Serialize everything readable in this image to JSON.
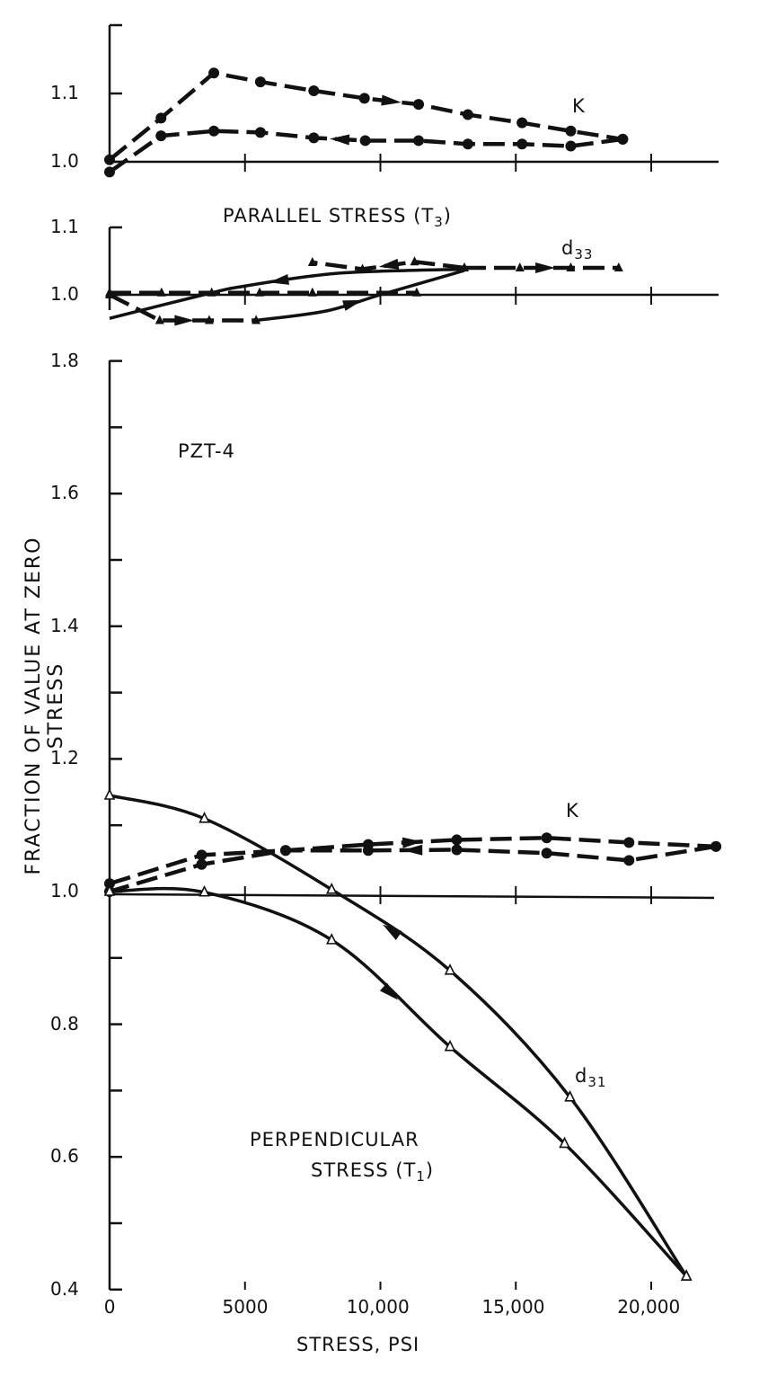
{
  "ylabel": "FRACTION OF VALUE AT ZERO STRESS",
  "xlabel": "STRESS, PSI",
  "annotations": {
    "k_top": "K",
    "parallel": "PARALLEL  STRESS (T",
    "parallel_sub": "3",
    "parallel_close": ")",
    "d33": "d",
    "d33_sub": "33",
    "material": "PZT-4",
    "k_bottom": "K",
    "d31": "d",
    "d31_sub": "31",
    "perp_line1": "PERPENDICULAR",
    "perp_line2": "STRESS (T",
    "perp_sub": "1",
    "perp_close": ")"
  },
  "chart_data": [
    {
      "type": "line",
      "panel": "parallel-stress-K",
      "ylim": [
        1.0,
        1.2
      ],
      "yticks": [
        {
          "v": 1.0,
          "label": "1.0"
        },
        {
          "v": 1.1,
          "label": "1.1"
        },
        {
          "v": 1.2,
          "label": ""
        }
      ],
      "xlim": [
        0,
        22500
      ],
      "grid": false,
      "series": [
        {
          "name": "K",
          "direction": "increasing",
          "marker": "dot",
          "line": "dashed",
          "points": [
            [
              0,
              1.003
            ],
            [
              1900,
              1.064
            ],
            [
              3850,
              1.13
            ],
            [
              5570,
              1.117
            ],
            [
              7540,
              1.104
            ],
            [
              9410,
              1.093
            ],
            [
              11410,
              1.084
            ],
            [
              13230,
              1.069
            ],
            [
              15230,
              1.057
            ],
            [
              17030,
              1.045
            ],
            [
              18950,
              1.033
            ]
          ]
        },
        {
          "name": "K",
          "direction": "decreasing",
          "marker": "dot",
          "line": "dashed",
          "points": [
            [
              18950,
              1.033
            ],
            [
              17030,
              1.023
            ],
            [
              15230,
              1.026
            ],
            [
              13230,
              1.026
            ],
            [
              11410,
              1.031
            ],
            [
              9440,
              1.031
            ],
            [
              7540,
              1.035
            ],
            [
              5570,
              1.043
            ],
            [
              3850,
              1.045
            ],
            [
              1900,
              1.038
            ],
            [
              0,
              0.985
            ]
          ]
        }
      ]
    },
    {
      "type": "line",
      "panel": "parallel-stress-d33",
      "ylim": [
        0.95,
        1.1
      ],
      "yticks": [
        {
          "v": 1.0,
          "label": "1.0"
        },
        {
          "v": 1.1,
          "label": "1.1"
        }
      ],
      "xlim": [
        0,
        22500
      ],
      "grid": false,
      "series": [
        {
          "name": "d33",
          "direction": "increasing",
          "marker": "triangle",
          "line": "dashed",
          "points": [
            [
              0,
              1.0
            ],
            [
              1850,
              0.962
            ],
            [
              3680,
              0.962
            ],
            [
              5410,
              0.962
            ]
          ]
        },
        {
          "name": "d33",
          "direction": "increasing",
          "marker": "none",
          "line": "solid",
          "points": [
            [
              5410,
              0.962
            ],
            [
              8000,
              0.976
            ],
            [
              10000,
              1.0
            ],
            [
              13100,
              1.036
            ]
          ]
        },
        {
          "name": "d33",
          "direction": "increasing",
          "marker": "triangle",
          "line": "dashed",
          "points": [
            [
              13100,
              1.04
            ],
            [
              15150,
              1.04
            ],
            [
              17030,
              1.04
            ],
            [
              18800,
              1.04
            ]
          ]
        },
        {
          "name": "d33",
          "direction": "decreasing",
          "marker": "triangle",
          "line": "dashed",
          "points": [
            [
              13100,
              1.04
            ],
            [
              11260,
              1.049
            ],
            [
              9340,
              1.038
            ],
            [
              7490,
              1.048
            ]
          ]
        },
        {
          "name": "d33",
          "direction": "decreasing",
          "marker": "none",
          "line": "solid",
          "points": [
            [
              13100,
              1.038
            ],
            [
              9340,
              1.034
            ],
            [
              7490,
              1.028
            ],
            [
              5000,
              1.013
            ],
            [
              3770,
              1.003
            ],
            [
              0,
              0.965
            ]
          ]
        },
        {
          "name": "d33",
          "direction": "none",
          "marker": "triangle",
          "line": "dashed",
          "points": [
            [
              0,
              1.003
            ],
            [
              1920,
              1.003
            ],
            [
              3770,
              1.003
            ],
            [
              5540,
              1.003
            ],
            [
              7490,
              1.003
            ],
            [
              11340,
              1.003
            ]
          ]
        }
      ]
    },
    {
      "type": "line",
      "panel": "perpendicular-stress",
      "ylim": [
        0.4,
        1.8
      ],
      "yticks": [
        {
          "v": 0.4,
          "label": "0.4"
        },
        {
          "v": 0.5,
          "label": ""
        },
        {
          "v": 0.6,
          "label": "0.6"
        },
        {
          "v": 0.7,
          "label": ""
        },
        {
          "v": 0.8,
          "label": "0.8"
        },
        {
          "v": 0.9,
          "label": ""
        },
        {
          "v": 1.0,
          "label": "1.0"
        },
        {
          "v": 1.1,
          "label": ""
        },
        {
          "v": 1.2,
          "label": "1.2"
        },
        {
          "v": 1.3,
          "label": ""
        },
        {
          "v": 1.4,
          "label": "1.4"
        },
        {
          "v": 1.5,
          "label": ""
        },
        {
          "v": 1.6,
          "label": "1.6"
        },
        {
          "v": 1.7,
          "label": ""
        },
        {
          "v": 1.8,
          "label": "1.8"
        }
      ],
      "xlim": [
        0,
        22500
      ],
      "xticks": [
        {
          "v": 0,
          "label": "0"
        },
        {
          "v": 5000,
          "label": "5000"
        },
        {
          "v": 10000,
          "label": "10,000"
        },
        {
          "v": 15000,
          "label": "15,000"
        },
        {
          "v": 20000,
          "label": "20,000"
        }
      ],
      "grid": false,
      "series": [
        {
          "name": "K",
          "direction": "increasing",
          "marker": "dot",
          "line": "dashed",
          "points": [
            [
              0,
              1.012
            ],
            [
              3400,
              1.055
            ],
            [
              6500,
              1.062
            ],
            [
              9550,
              1.071
            ],
            [
              12820,
              1.078
            ],
            [
              16140,
              1.081
            ],
            [
              19180,
              1.074
            ],
            [
              22390,
              1.068
            ]
          ]
        },
        {
          "name": "K",
          "direction": "decreasing",
          "marker": "dot",
          "line": "dashed",
          "points": [
            [
              22390,
              1.068
            ],
            [
              19180,
              1.047
            ],
            [
              16140,
              1.058
            ],
            [
              12820,
              1.063
            ],
            [
              9550,
              1.062
            ],
            [
              6500,
              1.062
            ],
            [
              3400,
              1.041
            ],
            [
              0,
              1.0
            ]
          ]
        },
        {
          "name": "d31",
          "direction": "increasing",
          "marker": "open-triangle",
          "line": "solid",
          "points": [
            [
              0,
              1.0
            ],
            [
              3500,
              0.999
            ],
            [
              8200,
              0.927
            ],
            [
              12570,
              0.766
            ],
            [
              16800,
              0.62
            ],
            [
              21300,
              0.42
            ]
          ]
        },
        {
          "name": "d31",
          "direction": "decreasing",
          "marker": "open-triangle",
          "line": "solid",
          "points": [
            [
              21300,
              0.42
            ],
            [
              17000,
              0.69
            ],
            [
              12570,
              0.881
            ],
            [
              8200,
              1.003
            ],
            [
              3500,
              1.11
            ],
            [
              0,
              1.145
            ]
          ]
        }
      ]
    }
  ]
}
